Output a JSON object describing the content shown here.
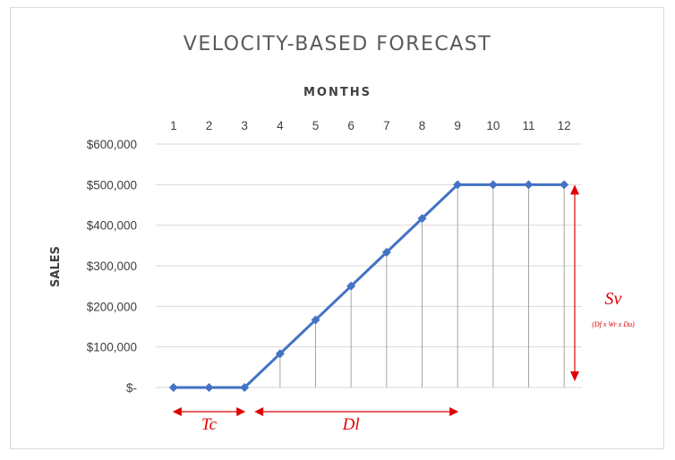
{
  "chart_data": {
    "type": "line",
    "title": "VELOCITY-BASED FORECAST",
    "xlabel": "MONTHS",
    "ylabel": "SALES",
    "x_axis_position": "top",
    "categories": [
      "1",
      "2",
      "3",
      "4",
      "5",
      "6",
      "7",
      "8",
      "9",
      "10",
      "11",
      "12"
    ],
    "series": [
      {
        "values": [
          0,
          0,
          0,
          83333,
          166667,
          250000,
          333333,
          416667,
          500000,
          500000,
          500000,
          500000
        ]
      }
    ],
    "ylim": [
      0,
      600000
    ],
    "y_ticks": [
      0,
      100000,
      200000,
      300000,
      400000,
      500000,
      600000
    ],
    "y_tick_labels": [
      "$-",
      "$100,000",
      "$200,000",
      "$300,000",
      "$400,000",
      "$500,000",
      "$600,000"
    ],
    "grid": "horizontal",
    "drop_lines": true,
    "legend": "none",
    "colors": {
      "series": "#4472c4",
      "annotation": "#e00000",
      "grid": "#d9d9d9",
      "drop_line": "#a6a6a6"
    },
    "annotations": [
      {
        "text": "Tc",
        "type": "horizontal-arrow",
        "from_x": 1,
        "to_x": 3
      },
      {
        "text": "Dl",
        "type": "horizontal-arrow",
        "from_x": 3,
        "to_x": 9
      },
      {
        "text": "Sv",
        "subtext": "(Df x Wr x Du)",
        "type": "vertical-arrow",
        "from_y": 0,
        "to_y": 500000
      }
    ]
  }
}
